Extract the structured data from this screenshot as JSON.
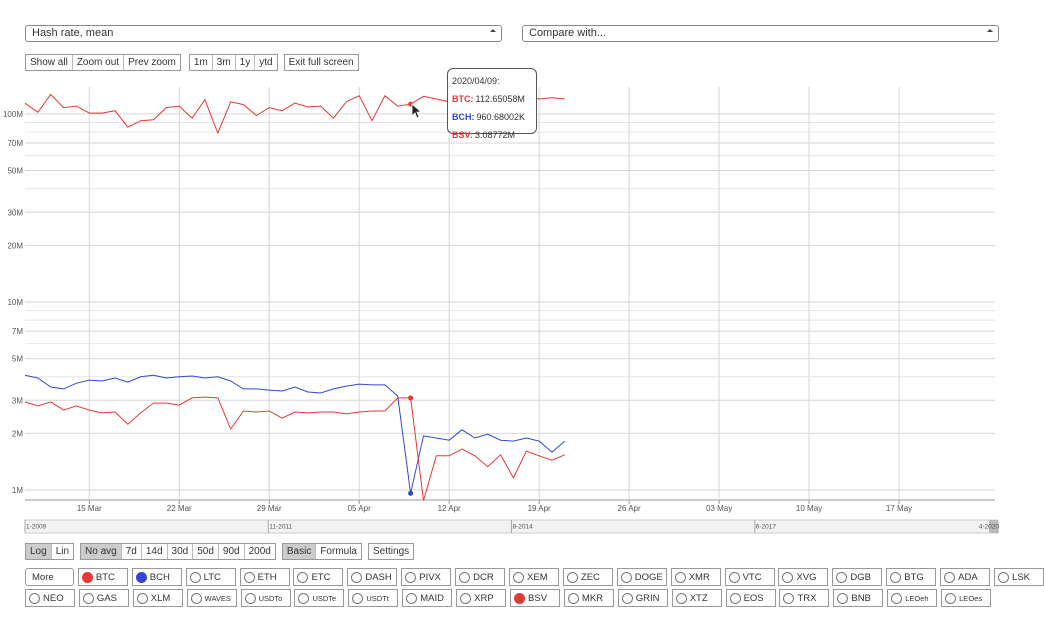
{
  "selects": {
    "metric": "Hash rate, mean",
    "compare": "Compare with..."
  },
  "zoom_buttons": [
    "Show all",
    "Zoom out",
    "Prev zoom"
  ],
  "range_buttons": [
    "1m",
    "3m",
    "1y",
    "ytd"
  ],
  "fullscreen_button": "Exit full screen",
  "tooltip": {
    "date": "2020/04/09:",
    "rows": [
      {
        "name": "BTC:",
        "value": "112.65058M",
        "color": "#e53935"
      },
      {
        "name": "BCH:",
        "value": "960.68002K",
        "color": "#3346d3"
      },
      {
        "name": "BSV:",
        "value": "3.08772M",
        "color": "#e53935"
      }
    ]
  },
  "chart_data": {
    "type": "line",
    "log_scale": true,
    "grid": true,
    "categories": [
      null,
      null,
      null,
      null,
      null,
      "15 Mar",
      null,
      null,
      null,
      null,
      null,
      null,
      "22 Mar",
      null,
      null,
      null,
      null,
      null,
      null,
      "29 Mar",
      null,
      null,
      null,
      null,
      null,
      null,
      "05 Apr",
      null,
      null,
      null,
      null,
      null,
      null,
      "12 Apr",
      null,
      null,
      null,
      null,
      null,
      null,
      "19 Apr",
      null,
      null,
      null,
      null,
      null,
      null,
      "26 Apr",
      null,
      null,
      null,
      null,
      null,
      null,
      "03 May",
      null,
      null,
      null,
      null,
      null,
      null,
      "10 May",
      null,
      null,
      null,
      null,
      null,
      null,
      "17 May",
      null,
      null,
      null,
      null,
      null,
      null,
      null
    ],
    "ylim": [
      0.885,
      139
    ],
    "yticks": [
      {
        "value": 1,
        "label": "1M"
      },
      {
        "value": 2,
        "label": "2M"
      },
      {
        "value": 3,
        "label": "3M"
      },
      {
        "value": 5,
        "label": "5M"
      },
      {
        "value": 7,
        "label": "7M"
      },
      {
        "value": 10,
        "label": "10M"
      },
      {
        "value": 20,
        "label": "20M"
      },
      {
        "value": 30,
        "label": "30M"
      },
      {
        "value": 50,
        "label": "50M"
      },
      {
        "value": 70,
        "label": "70M"
      },
      {
        "value": 100,
        "label": "100M"
      }
    ],
    "minor_yticks": [
      4,
      6,
      8,
      9,
      40,
      60,
      80,
      90
    ],
    "series": [
      {
        "name": "BTC",
        "color": "#e53935",
        "values": [
          114,
          102,
          127,
          108,
          110,
          101,
          101,
          104,
          85,
          92,
          93,
          108,
          110,
          95,
          119,
          79,
          116,
          112,
          98,
          108,
          104,
          114,
          109,
          110,
          95,
          116,
          125,
          92,
          125,
          110,
          112.65058,
          124,
          120,
          116,
          124,
          120,
          116,
          98,
          114,
          124,
          120,
          122,
          120,
          null,
          null,
          null,
          null,
          null,
          null,
          null,
          null,
          null,
          null,
          null,
          null,
          null,
          null,
          null,
          null,
          null,
          null,
          null,
          null,
          null,
          null,
          null,
          null,
          null,
          null,
          null,
          null,
          null,
          null,
          null,
          null,
          null
        ]
      },
      {
        "name": "BCH",
        "color": "#3346d3",
        "values": [
          4.08,
          3.94,
          3.53,
          3.45,
          3.7,
          3.84,
          3.8,
          3.94,
          3.75,
          4.0,
          4.08,
          3.94,
          4.0,
          4.04,
          3.94,
          4.0,
          3.8,
          3.45,
          3.45,
          3.4,
          3.36,
          3.53,
          3.32,
          3.28,
          3.45,
          3.57,
          3.66,
          3.62,
          3.62,
          3.16,
          0.96068,
          1.94,
          1.89,
          1.84,
          2.09,
          1.89,
          1.98,
          1.84,
          1.82,
          1.89,
          1.82,
          1.59,
          1.82,
          null,
          null,
          null,
          null,
          null,
          null,
          null,
          null,
          null,
          null,
          null,
          null,
          null,
          null,
          null,
          null,
          null,
          null,
          null,
          null,
          null,
          null,
          null,
          null,
          null,
          null,
          null,
          null,
          null,
          null,
          null,
          null,
          null
        ]
      },
      {
        "name": "BSV",
        "color": "#e53935",
        "values": [
          2.94,
          2.8,
          2.94,
          2.66,
          2.8,
          2.66,
          2.57,
          2.6,
          2.24,
          2.57,
          2.9,
          2.9,
          2.83,
          3.09,
          3.12,
          3.09,
          2.11,
          2.63,
          2.6,
          2.63,
          2.41,
          2.6,
          2.57,
          2.6,
          2.6,
          2.54,
          2.6,
          2.63,
          2.63,
          3.09,
          3.08772,
          0.88,
          1.52,
          1.52,
          1.65,
          1.52,
          1.33,
          1.54,
          1.16,
          1.61,
          1.52,
          1.44,
          1.54,
          null,
          null,
          null,
          null,
          null,
          null,
          null,
          null,
          null,
          null,
          null,
          null,
          null,
          null,
          null,
          null,
          null,
          null,
          null,
          null,
          null,
          null,
          null,
          null,
          null,
          null,
          null,
          null,
          null,
          null,
          null,
          null,
          null
        ]
      }
    ],
    "hover_index": 30
  },
  "navigator": {
    "labels": [
      "1-2009",
      "11-2011",
      "8-2014",
      "6-2017",
      "4-2020"
    ]
  },
  "scale_buttons": [
    {
      "label": "Log",
      "active": true
    },
    {
      "label": "Lin",
      "active": false
    }
  ],
  "avg_buttons": [
    {
      "label": "No avg",
      "active": true
    },
    {
      "label": "7d",
      "active": false
    },
    {
      "label": "14d",
      "active": false
    },
    {
      "label": "30d",
      "active": false
    },
    {
      "label": "50d",
      "active": false
    },
    {
      "label": "90d",
      "active": false
    },
    {
      "label": "200d",
      "active": false
    }
  ],
  "mode_buttons": [
    {
      "label": "Basic",
      "active": true
    },
    {
      "label": "Formula",
      "active": false
    }
  ],
  "settings_button": "Settings",
  "more_select": "More",
  "coin_rows": [
    [
      {
        "label": "BTC",
        "color": "#e53935"
      },
      {
        "label": "BCH",
        "color": "#3346d3"
      },
      {
        "label": "LTC"
      },
      {
        "label": "ETH"
      },
      {
        "label": "ETC"
      },
      {
        "label": "DASH"
      },
      {
        "label": "PIVX"
      },
      {
        "label": "DCR"
      },
      {
        "label": "XEM"
      },
      {
        "label": "ZEC"
      },
      {
        "label": "DOGE"
      },
      {
        "label": "XMR"
      },
      {
        "label": "VTC"
      },
      {
        "label": "XVG"
      },
      {
        "label": "DGB"
      },
      {
        "label": "BTG"
      },
      {
        "label": "ADA"
      },
      {
        "label": "LSK"
      }
    ],
    [
      {
        "label": "NEO"
      },
      {
        "label": "GAS"
      },
      {
        "label": "XLM"
      },
      {
        "label": "WAVES"
      },
      {
        "label": "USDTo"
      },
      {
        "label": "USDTe"
      },
      {
        "label": "USDTt"
      },
      {
        "label": "MAID"
      },
      {
        "label": "XRP"
      },
      {
        "label": "BSV",
        "color": "#e53935"
      },
      {
        "label": "MKR"
      },
      {
        "label": "GRIN"
      },
      {
        "label": "XTZ"
      },
      {
        "label": "EOS"
      },
      {
        "label": "TRX"
      },
      {
        "label": "BNB"
      },
      {
        "label": "LEOeh"
      },
      {
        "label": "LEOes"
      }
    ]
  ]
}
